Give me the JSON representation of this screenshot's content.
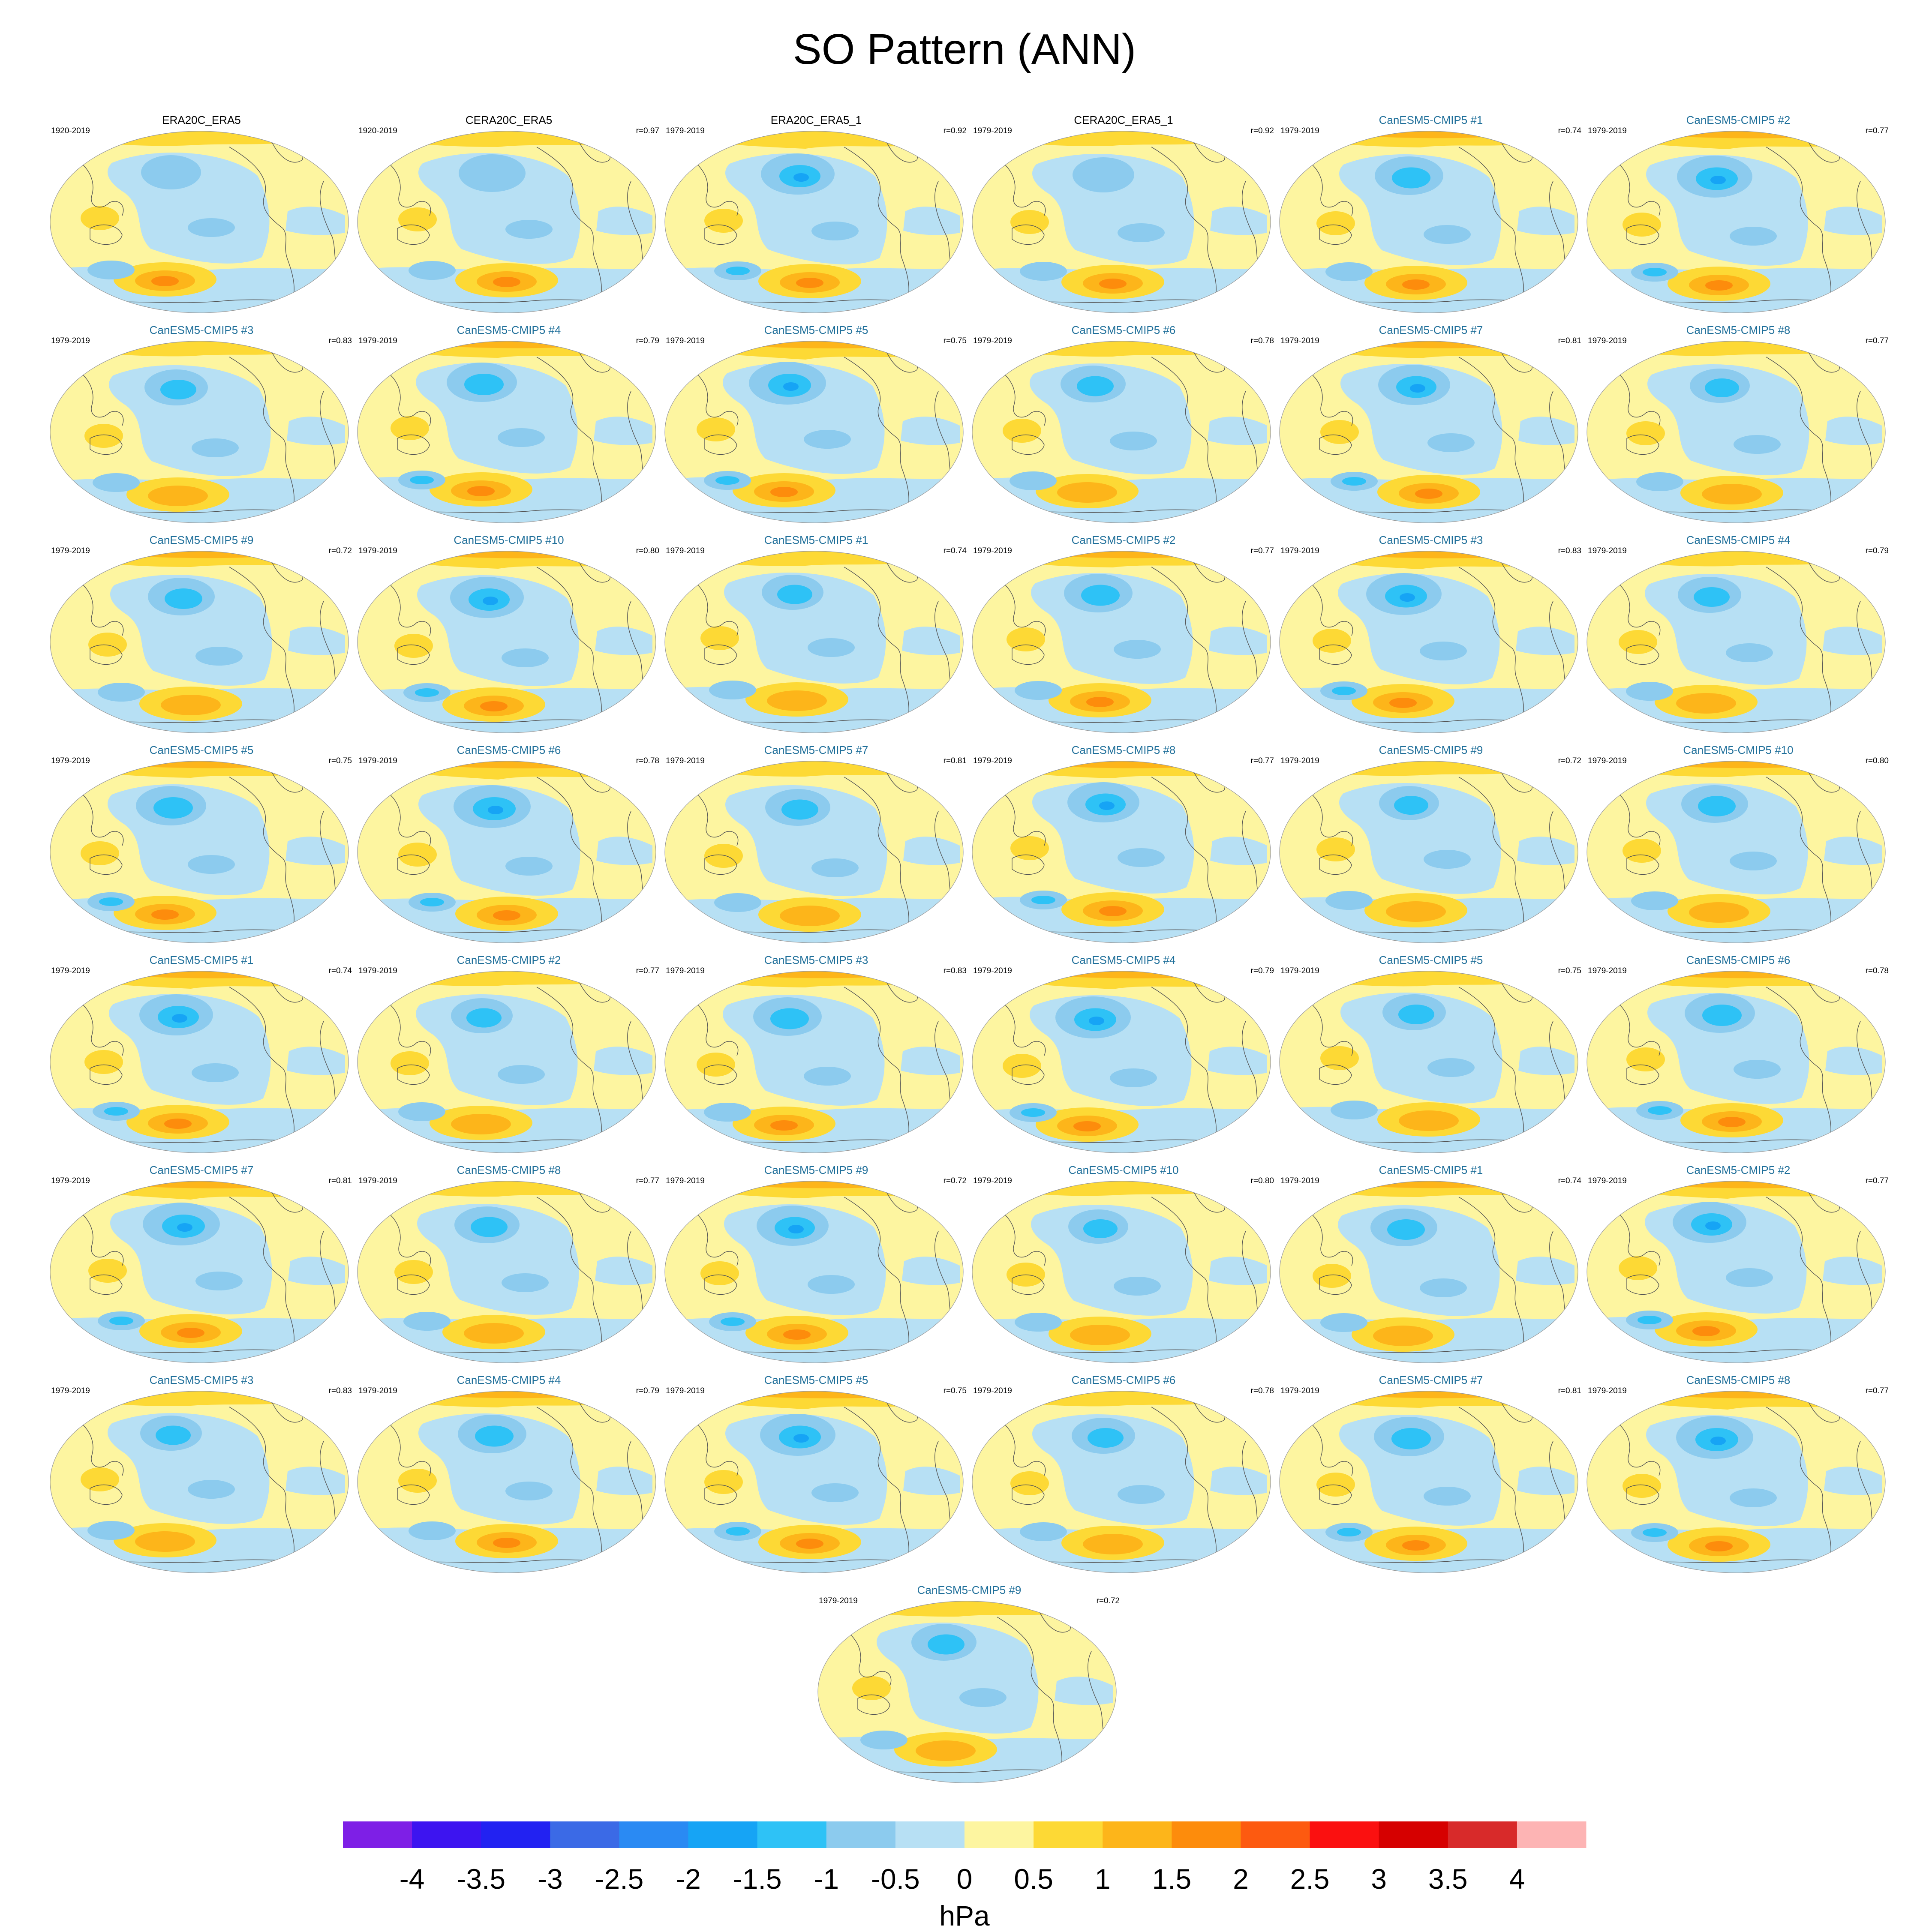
{
  "title": "SO Pattern (ANN)",
  "panels": [
    {
      "name": "ERA20C_ERA5",
      "years": "1920-2019",
      "corr": "",
      "kind": "obs"
    },
    {
      "name": "CERA20C_ERA5",
      "years": "1920-2019",
      "corr": "r=0.97",
      "kind": "obs"
    },
    {
      "name": "ERA20C_ERA5_1",
      "years": "1979-2019",
      "corr": "r=0.92",
      "kind": "obs"
    },
    {
      "name": "CERA20C_ERA5_1",
      "years": "1979-2019",
      "corr": "r=0.92",
      "kind": "obs"
    },
    {
      "name": "CanESM5-CMIP5 #1",
      "years": "1979-2019",
      "corr": "r=0.74",
      "kind": "model"
    },
    {
      "name": "CanESM5-CMIP5 #2",
      "years": "1979-2019",
      "corr": "r=0.77",
      "kind": "model"
    },
    {
      "name": "CanESM5-CMIP5 #3",
      "years": "1979-2019",
      "corr": "r=0.83",
      "kind": "model"
    },
    {
      "name": "CanESM5-CMIP5 #4",
      "years": "1979-2019",
      "corr": "r=0.79",
      "kind": "model"
    },
    {
      "name": "CanESM5-CMIP5 #5",
      "years": "1979-2019",
      "corr": "r=0.75",
      "kind": "model"
    },
    {
      "name": "CanESM5-CMIP5 #6",
      "years": "1979-2019",
      "corr": "r=0.78",
      "kind": "model"
    },
    {
      "name": "CanESM5-CMIP5 #7",
      "years": "1979-2019",
      "corr": "r=0.81",
      "kind": "model"
    },
    {
      "name": "CanESM5-CMIP5 #8",
      "years": "1979-2019",
      "corr": "r=0.77",
      "kind": "model"
    },
    {
      "name": "CanESM5-CMIP5 #9",
      "years": "1979-2019",
      "corr": "r=0.72",
      "kind": "model"
    },
    {
      "name": "CanESM5-CMIP5 #10",
      "years": "1979-2019",
      "corr": "r=0.80",
      "kind": "model"
    },
    {
      "name": "CanESM5-CMIP5 #1",
      "years": "1979-2019",
      "corr": "r=0.74",
      "kind": "model"
    },
    {
      "name": "CanESM5-CMIP5 #2",
      "years": "1979-2019",
      "corr": "r=0.77",
      "kind": "model"
    },
    {
      "name": "CanESM5-CMIP5 #3",
      "years": "1979-2019",
      "corr": "r=0.83",
      "kind": "model"
    },
    {
      "name": "CanESM5-CMIP5 #4",
      "years": "1979-2019",
      "corr": "r=0.79",
      "kind": "model"
    },
    {
      "name": "CanESM5-CMIP5 #5",
      "years": "1979-2019",
      "corr": "r=0.75",
      "kind": "model"
    },
    {
      "name": "CanESM5-CMIP5 #6",
      "years": "1979-2019",
      "corr": "r=0.78",
      "kind": "model"
    },
    {
      "name": "CanESM5-CMIP5 #7",
      "years": "1979-2019",
      "corr": "r=0.81",
      "kind": "model"
    },
    {
      "name": "CanESM5-CMIP5 #8",
      "years": "1979-2019",
      "corr": "r=0.77",
      "kind": "model"
    },
    {
      "name": "CanESM5-CMIP5 #9",
      "years": "1979-2019",
      "corr": "r=0.72",
      "kind": "model"
    },
    {
      "name": "CanESM5-CMIP5 #10",
      "years": "1979-2019",
      "corr": "r=0.80",
      "kind": "model"
    },
    {
      "name": "CanESM5-CMIP5 #1",
      "years": "1979-2019",
      "corr": "r=0.74",
      "kind": "model"
    },
    {
      "name": "CanESM5-CMIP5 #2",
      "years": "1979-2019",
      "corr": "r=0.77",
      "kind": "model"
    },
    {
      "name": "CanESM5-CMIP5 #3",
      "years": "1979-2019",
      "corr": "r=0.83",
      "kind": "model"
    },
    {
      "name": "CanESM5-CMIP5 #4",
      "years": "1979-2019",
      "corr": "r=0.79",
      "kind": "model"
    },
    {
      "name": "CanESM5-CMIP5 #5",
      "years": "1979-2019",
      "corr": "r=0.75",
      "kind": "model"
    },
    {
      "name": "CanESM5-CMIP5 #6",
      "years": "1979-2019",
      "corr": "r=0.78",
      "kind": "model"
    },
    {
      "name": "CanESM5-CMIP5 #7",
      "years": "1979-2019",
      "corr": "r=0.81",
      "kind": "model"
    },
    {
      "name": "CanESM5-CMIP5 #8",
      "years": "1979-2019",
      "corr": "r=0.77",
      "kind": "model"
    },
    {
      "name": "CanESM5-CMIP5 #9",
      "years": "1979-2019",
      "corr": "r=0.72",
      "kind": "model"
    },
    {
      "name": "CanESM5-CMIP5 #10",
      "years": "1979-2019",
      "corr": "r=0.80",
      "kind": "model"
    },
    {
      "name": "CanESM5-CMIP5 #1",
      "years": "1979-2019",
      "corr": "r=0.74",
      "kind": "model"
    },
    {
      "name": "CanESM5-CMIP5 #2",
      "years": "1979-2019",
      "corr": "r=0.77",
      "kind": "model"
    },
    {
      "name": "CanESM5-CMIP5 #3",
      "years": "1979-2019",
      "corr": "r=0.83",
      "kind": "model"
    },
    {
      "name": "CanESM5-CMIP5 #4",
      "years": "1979-2019",
      "corr": "r=0.79",
      "kind": "model"
    },
    {
      "name": "CanESM5-CMIP5 #5",
      "years": "1979-2019",
      "corr": "r=0.75",
      "kind": "model"
    },
    {
      "name": "CanESM5-CMIP5 #6",
      "years": "1979-2019",
      "corr": "r=0.78",
      "kind": "model"
    },
    {
      "name": "CanESM5-CMIP5 #7",
      "years": "1979-2019",
      "corr": "r=0.81",
      "kind": "model"
    },
    {
      "name": "CanESM5-CMIP5 #8",
      "years": "1979-2019",
      "corr": "r=0.77",
      "kind": "model"
    },
    {
      "name": "CanESM5-CMIP5 #9",
      "years": "1979-2019",
      "corr": "r=0.72",
      "kind": "model"
    }
  ],
  "colorbar": {
    "units": "hPa",
    "levels": [
      "-4",
      "-3.5",
      "-3",
      "-2.5",
      "-2",
      "-1.5",
      "-1",
      "-0.5",
      "0",
      "0.5",
      "1",
      "1.5",
      "2",
      "2.5",
      "3",
      "3.5",
      "4"
    ],
    "colors": [
      "#7e1fe6",
      "#3d14f0",
      "#2222f2",
      "#3b6ae6",
      "#2a8af3",
      "#16a4f5",
      "#2ec2f6",
      "#8ccbee",
      "#b7e0f4",
      "#fdf5a0",
      "#fdd935",
      "#fdb51a",
      "#fd8c0c",
      "#fd5a10",
      "#fb1010",
      "#d60000",
      "#d82a2a",
      "#fdb4b4"
    ]
  },
  "style": {
    "neg_weak": "#b7e0f4",
    "neg_mid": "#8ccbee",
    "neg_strong": "#2ec2f6",
    "neg_core": "#16a4f5",
    "pos_weak": "#fdf5a0",
    "pos_mid": "#fdd935",
    "pos_strong": "#fdb51a",
    "pos_core": "#fd8c0c",
    "coast": "#555555"
  }
}
